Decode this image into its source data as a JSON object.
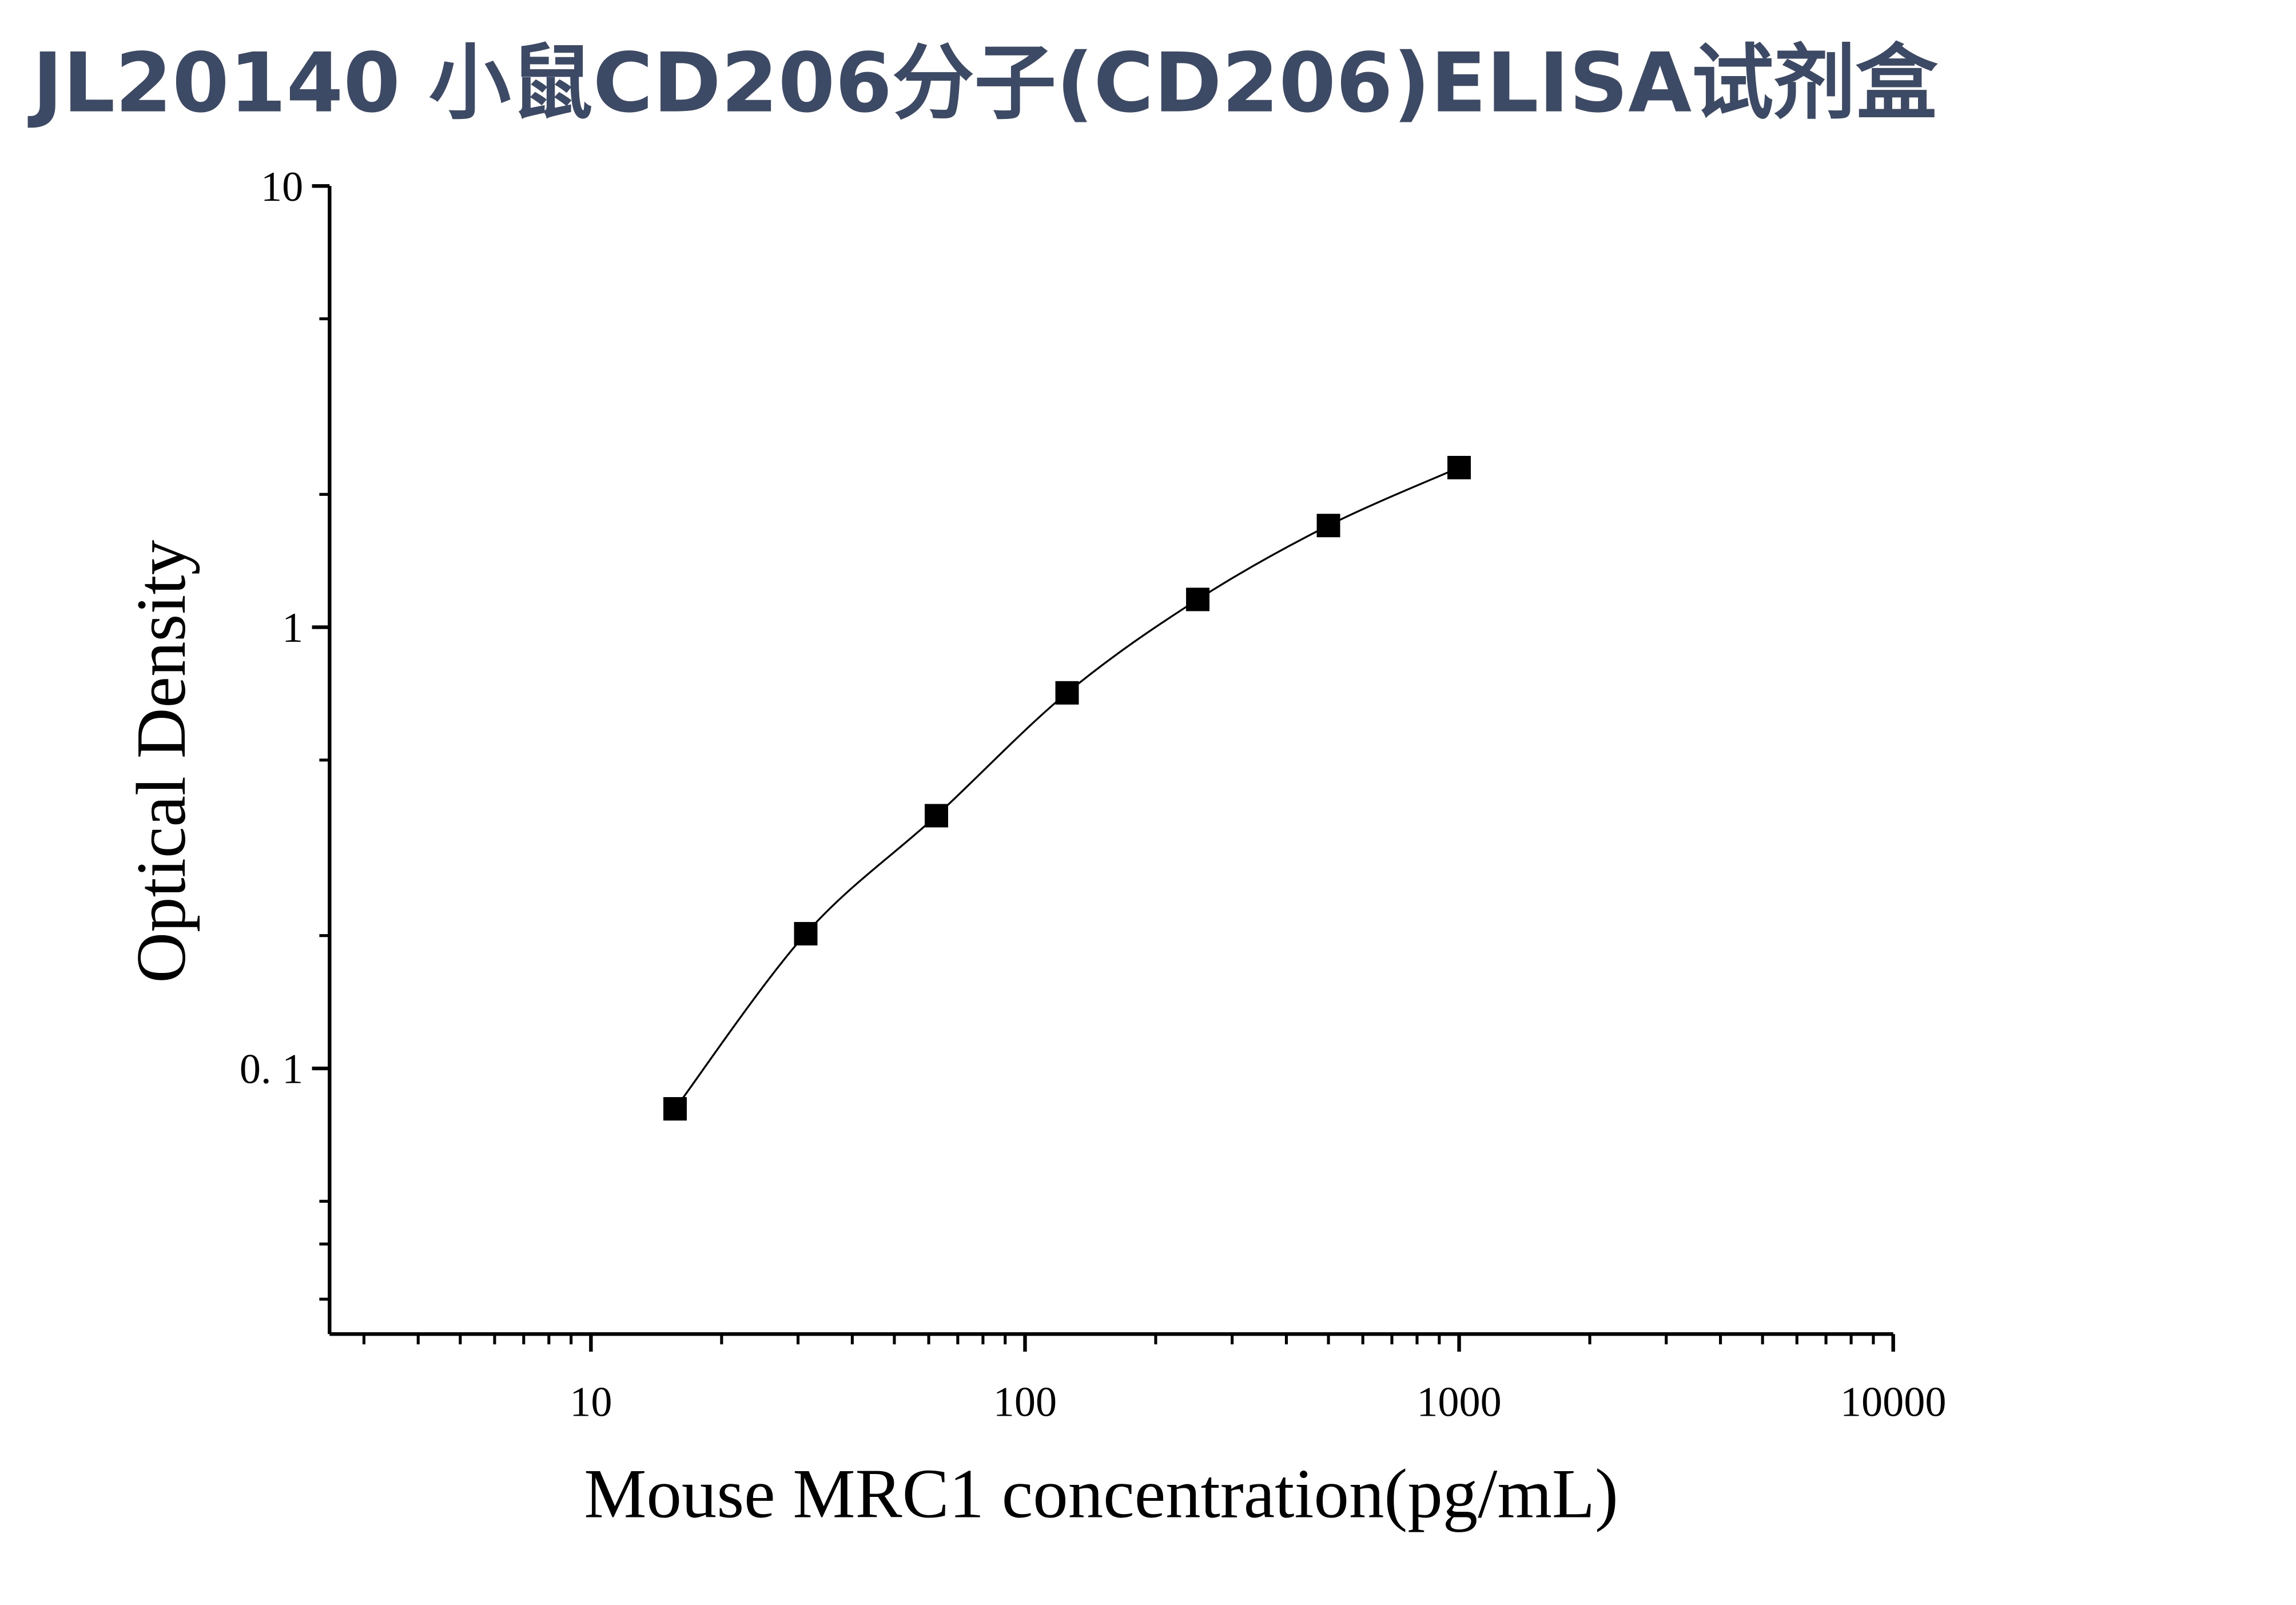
{
  "chart_data": {
    "type": "scatter",
    "title": "JL20140 小鼠CD206分子(CD206)ELISA试剂盒",
    "x_label": "Mouse MRC1 concentration(pg/mL)",
    "y_label": "Optical Density",
    "x_log": true,
    "y_log": true,
    "xlim": [
      2.5,
      10000
    ],
    "ylim": [
      0.025,
      10
    ],
    "xticks": [
      10,
      100,
      1000,
      10000
    ],
    "yticks": [
      {
        "value": 0.1,
        "label": "0. 1"
      },
      1,
      10
    ],
    "xminorticks": [
      3,
      4,
      5,
      6,
      7,
      8,
      9,
      20,
      30,
      40,
      50,
      60,
      70,
      80,
      90,
      200,
      300,
      400,
      500,
      600,
      700,
      800,
      900,
      2000,
      3000,
      4000,
      5000,
      6000,
      7000,
      8000,
      9000
    ],
    "yminorticks": [
      5,
      2,
      0.5,
      0.2,
      0.05,
      0.04,
      0.03
    ],
    "fit_curve": true,
    "color": "#000000",
    "x": [
      15.625,
      31.25,
      62.5,
      125,
      250,
      500,
      1000
    ],
    "values": [
      0.081,
      0.202,
      0.374,
      0.71,
      1.156,
      1.7,
      2.3
    ]
  }
}
